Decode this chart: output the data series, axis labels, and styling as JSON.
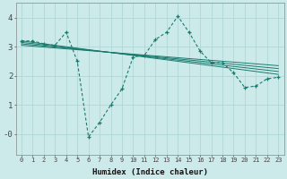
{
  "x_main": [
    0,
    1,
    2,
    3,
    4,
    5,
    6,
    7,
    8,
    9,
    10,
    11,
    12,
    13,
    14,
    15,
    16,
    17,
    18,
    19,
    20,
    21,
    22,
    23
  ],
  "y_main": [
    3.2,
    3.2,
    3.1,
    3.05,
    3.5,
    2.5,
    -0.1,
    0.4,
    1.0,
    1.55,
    2.65,
    2.7,
    3.25,
    3.5,
    4.05,
    3.5,
    2.85,
    2.45,
    2.45,
    2.1,
    1.6,
    1.65,
    1.9,
    1.95
  ],
  "trend_lines": [
    [
      3.2,
      2.05
    ],
    [
      3.15,
      2.15
    ],
    [
      3.1,
      2.25
    ],
    [
      3.05,
      2.35
    ]
  ],
  "main_color": "#1a7a6e",
  "bg_color": "#cdeaea",
  "grid_color": "#b0d8d8",
  "xlabel": "Humidex (Indice chaleur)",
  "xlim": [
    -0.5,
    23.5
  ],
  "ylim": [
    -0.7,
    4.5
  ],
  "yticks": [
    0,
    1,
    2,
    3,
    4
  ],
  "ytick_labels": [
    "-0",
    "1",
    "2",
    "3",
    "4"
  ],
  "xtick_labels": [
    "0",
    "1",
    "2",
    "3",
    "4",
    "5",
    "6",
    "7",
    "8",
    "9",
    "10",
    "11",
    "12",
    "13",
    "14",
    "15",
    "16",
    "17",
    "18",
    "19",
    "20",
    "21",
    "22",
    "23"
  ]
}
